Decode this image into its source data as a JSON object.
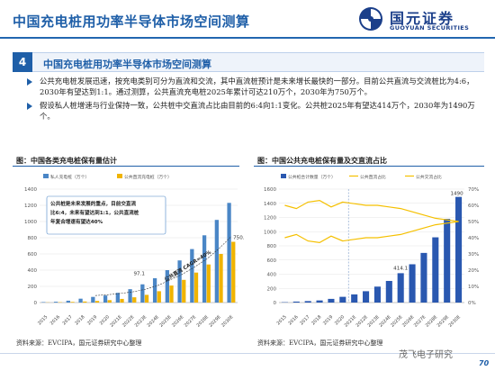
{
  "header": {
    "title": "中国充电桩用功率半导体市场空间测算",
    "logo_cn": "国元证券",
    "logo_en": "GUOYUAN SECURITIES"
  },
  "section": {
    "number": "4",
    "title": "中国充电桩用功率半导体市场空间测算"
  },
  "bullets": [
    "公共充电桩发展迅速，按充电类别可分为直流和交流，其中直流桩预计是未来增长最快的一部分。目前公共直流与交流桩比为4:6，2030年有望达到1:1。通过测算，公共直流充电桩2025年累计可达210万个，2030年为750万个。",
    "假设私人桩增速与行业保持一致，公共桩中交直流占比由目前的6:4向1:1变化。公共桩2025年有望达414万个，2030年为1490万个。"
  ],
  "footer": {
    "source_left": "资料来源：EVCIPA，国元证券研究中心整理",
    "source_right": "资料来源：EVCIPA，国元证券研究中心整理",
    "page": "70",
    "watermark": "茂飞电子研究"
  },
  "chart_data": [
    {
      "type": "bar",
      "title": "图：中国各类充电桩保有量估计",
      "categories": [
        "2015",
        "2016",
        "2017",
        "2018",
        "2019",
        "2020",
        "2021E",
        "2022E",
        "2023E",
        "2024E",
        "2025E",
        "2026E",
        "2027E",
        "2028E",
        "2029E",
        "2030E"
      ],
      "series": [
        {
          "name": "私人充电桩（万个）",
          "color": "#4a86c6",
          "values": [
            6,
            10,
            23,
            48,
            70,
            87,
            120,
            165,
            225,
            300,
            400,
            520,
            660,
            830,
            1020,
            1230
          ]
        },
        {
          "name": "公共直流充电桩（万个）",
          "color": "#f0b400",
          "values": [
            2,
            4,
            8,
            13,
            20,
            30,
            45,
            65,
            95,
            140,
            210,
            280,
            370,
            470,
            600,
            750
          ]
        }
      ],
      "ylim": [
        0,
        1400
      ],
      "yticks": [
        0,
        200,
        400,
        600,
        800,
        1000,
        1200,
        1400
      ],
      "annotations": {
        "box": "公共桩是未来发展的重点，目前交直流比6:4，未来有望达到1:1，公共直流桩年复合增速有望达40%",
        "cagr": "公共直流 CAGR=40%",
        "value_labels": [
          "97.1",
          "750.2"
        ]
      }
    },
    {
      "type": "bar",
      "title": "图：中国公共充电桩保有量及交直流占比",
      "categories": [
        "2015",
        "2016",
        "2017",
        "2018",
        "2019",
        "2020",
        "2021E",
        "2022E",
        "2023E",
        "2024E",
        "2025E",
        "2026E",
        "2027E",
        "2028E",
        "2029E",
        "2030E"
      ],
      "bar_series": {
        "name": "公共桩合计数量（万个）",
        "color": "#2a58b0",
        "values": [
          5,
          14,
          21,
          30,
          52,
          81,
          115,
          160,
          225,
          305,
          414.1,
          540,
          700,
          920,
          1180,
          1490
        ]
      },
      "line_series": [
        {
          "name": "公共直流占比",
          "color": "#f5c000",
          "values": [
            0.4,
            0.42,
            0.38,
            0.37,
            0.41,
            0.38,
            0.39,
            0.4,
            0.4,
            0.41,
            0.42,
            0.44,
            0.46,
            0.48,
            0.49,
            0.5
          ]
        },
        {
          "name": "公共交流占比",
          "color": "#f5c000",
          "values": [
            0.6,
            0.58,
            0.62,
            0.63,
            0.59,
            0.62,
            0.61,
            0.6,
            0.6,
            0.59,
            0.58,
            0.56,
            0.54,
            0.52,
            0.51,
            0.5
          ]
        }
      ],
      "ylim_left": [
        0,
        1600
      ],
      "yticks_left": [
        0,
        200,
        400,
        600,
        800,
        1000,
        1200,
        1400,
        1600
      ],
      "ylim_right": [
        0,
        0.7
      ],
      "yticks_right": [
        "0%",
        "10%",
        "20%",
        "30%",
        "40%",
        "50%",
        "60%",
        "70%"
      ],
      "value_labels": [
        "414.1",
        "1490"
      ]
    }
  ]
}
